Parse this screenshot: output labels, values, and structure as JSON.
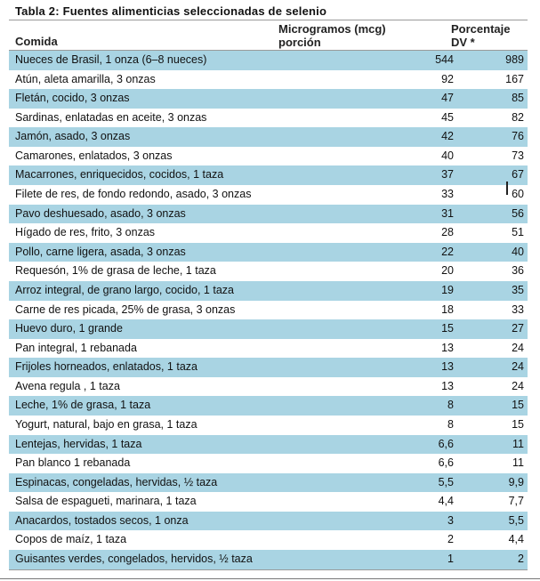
{
  "table": {
    "title": "Tabla 2: Fuentes alimenticias seleccionadas de selenio",
    "header_food": "Comida",
    "header_mcg_line1": "Microgramos (mcg)",
    "header_mcg_line2": "porción",
    "header_dv_line1": "Porcentaje",
    "header_dv_line2": "DV *",
    "rows": [
      {
        "food": "Nueces de Brasil, 1 onza (6–8 nueces)",
        "mcg": "544",
        "dv": "989"
      },
      {
        "food": "Atún, aleta amarilla,  3 onzas",
        "mcg": "92",
        "dv": "167"
      },
      {
        "food": "Fletán, cocido, 3 onzas",
        "mcg": "47",
        "dv": "85"
      },
      {
        "food": "Sardinas, enlatadas  en aceite, 3 onzas",
        "mcg": "45",
        "dv": "82"
      },
      {
        "food": "Jamón, asado, 3 onzas",
        "mcg": "42",
        "dv": "76"
      },
      {
        "food": "Camarones,  enlatados, 3 onzas",
        "mcg": "40",
        "dv": "73"
      },
      {
        "food": "Macarrones,  enriquecidos, cocidos, 1 taza",
        "mcg": "37",
        "dv": "67"
      },
      {
        "food": "Filete de res, de fondo redondo, asado, 3 onzas",
        "mcg": "33",
        "dv": "60"
      },
      {
        "food": "Pavo deshuesado, asado, 3 onzas",
        "mcg": "31",
        "dv": "56"
      },
      {
        "food": "Hígado de res,  frito, 3 onzas",
        "mcg": "28",
        "dv": "51"
      },
      {
        "food": "Pollo, carne ligera, asada, 3 onzas",
        "mcg": "22",
        "dv": "40"
      },
      {
        "food": "Requesón, 1% de grasa de leche,  1 taza",
        "mcg": "20",
        "dv": "36"
      },
      {
        "food": "Arroz integral, de grano largo, cocido, 1 taza",
        "mcg": "19",
        "dv": "35"
      },
      {
        "food": "Carne  de res picada, 25% de grasa, 3 onzas",
        "mcg": "18",
        "dv": "33"
      },
      {
        "food": "Huevo duro, 1 grande",
        "mcg": "15",
        "dv": "27"
      },
      {
        "food": "Pan integral,  1 rebanada",
        "mcg": "13",
        "dv": "24"
      },
      {
        "food": "Frijoles horneados, enlatados, 1 taza",
        "mcg": "13",
        "dv": "24"
      },
      {
        "food": "Avena regula , 1 taza",
        "mcg": "13",
        "dv": "24"
      },
      {
        "food": "Leche,  1% de grasa,  1 taza",
        "mcg": "8",
        "dv": "15"
      },
      {
        "food": "Yogurt, natural,  bajo en grasa, 1 taza",
        "mcg": "8",
        "dv": "15"
      },
      {
        "food": "Lentejas,  hervidas,  1 taza",
        "mcg": "6,6",
        "dv": "11"
      },
      {
        "food": "Pan blanco 1 rebanada",
        "mcg": "6,6",
        "dv": "11"
      },
      {
        "food": "Espinacas, congeladas, hervidas, ½ taza",
        "mcg": "5,5",
        "dv": "9,9"
      },
      {
        "food": "Salsa de espagueti, marinara,  1 taza",
        "mcg": "4,4",
        "dv": "7,7"
      },
      {
        "food": "Anacardos, tostados secos, 1 onza",
        "mcg": "3",
        "dv": "5,5"
      },
      {
        "food": "Copos de maíz,  1 taza",
        "mcg": "2",
        "dv": "4,4"
      },
      {
        "food": "Guisantes verdes, congelados, hervidos, ½ taza",
        "mcg": "1",
        "dv": "2"
      }
    ]
  },
  "colors": {
    "row_shade": "#a9d4e3",
    "rule": "#9a9a9a"
  }
}
